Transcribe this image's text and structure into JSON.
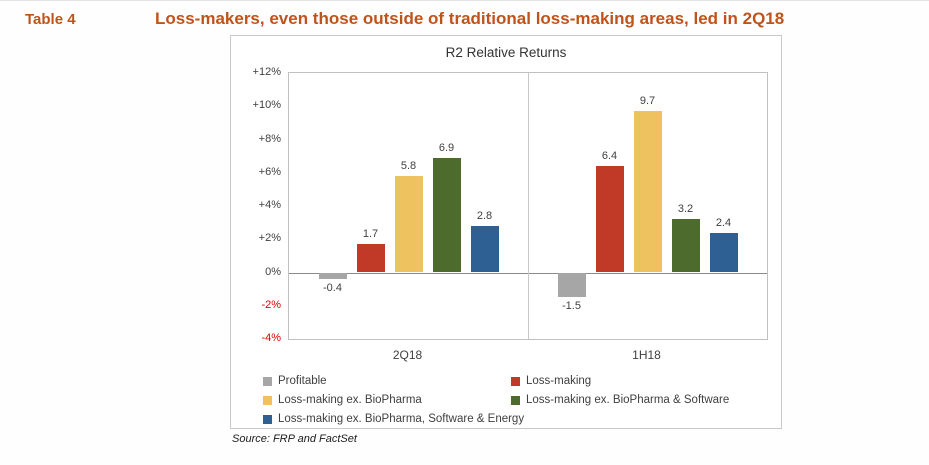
{
  "header": {
    "table_label": "Table 4",
    "title": "Loss-makers, even those outside of traditional loss-making areas, led in 2Q18"
  },
  "source_note": "Source: FRP and FactSet",
  "colors": {
    "accent": "#c0531b",
    "negative_tick": "#e00000"
  },
  "chart_data": {
    "type": "bar",
    "title": "R2 Relative Returns",
    "categories": [
      "2Q18",
      "1H18"
    ],
    "series": [
      {
        "name": "Profitable",
        "color": "#a6a6a6",
        "values": [
          -0.4,
          -1.5
        ]
      },
      {
        "name": "Loss-making",
        "color": "#c13a27",
        "values": [
          1.7,
          6.4
        ]
      },
      {
        "name": "Loss-making ex. BioPharma",
        "color": "#eec35f",
        "values": [
          5.8,
          9.7
        ]
      },
      {
        "name": "Loss-making ex. BioPharma & Software",
        "color": "#4e6b2e",
        "values": [
          6.9,
          3.2
        ]
      },
      {
        "name": "Loss-making ex. BioPharma, Software & Energy",
        "color": "#2e6094",
        "values": [
          2.8,
          2.4
        ]
      }
    ],
    "ylim": [
      -4,
      12
    ],
    "ytick_step": 2,
    "yticks": [
      {
        "label": "+12%",
        "value": 12
      },
      {
        "label": "+10%",
        "value": 10
      },
      {
        "label": "+8%",
        "value": 8
      },
      {
        "label": "+6%",
        "value": 6
      },
      {
        "label": "+4%",
        "value": 4
      },
      {
        "label": "+2%",
        "value": 2
      },
      {
        "label": "0%",
        "value": 0
      },
      {
        "label": "-2%",
        "value": -2
      },
      {
        "label": "-4%",
        "value": -4
      }
    ],
    "grid": false,
    "legend_position": "bottom"
  }
}
